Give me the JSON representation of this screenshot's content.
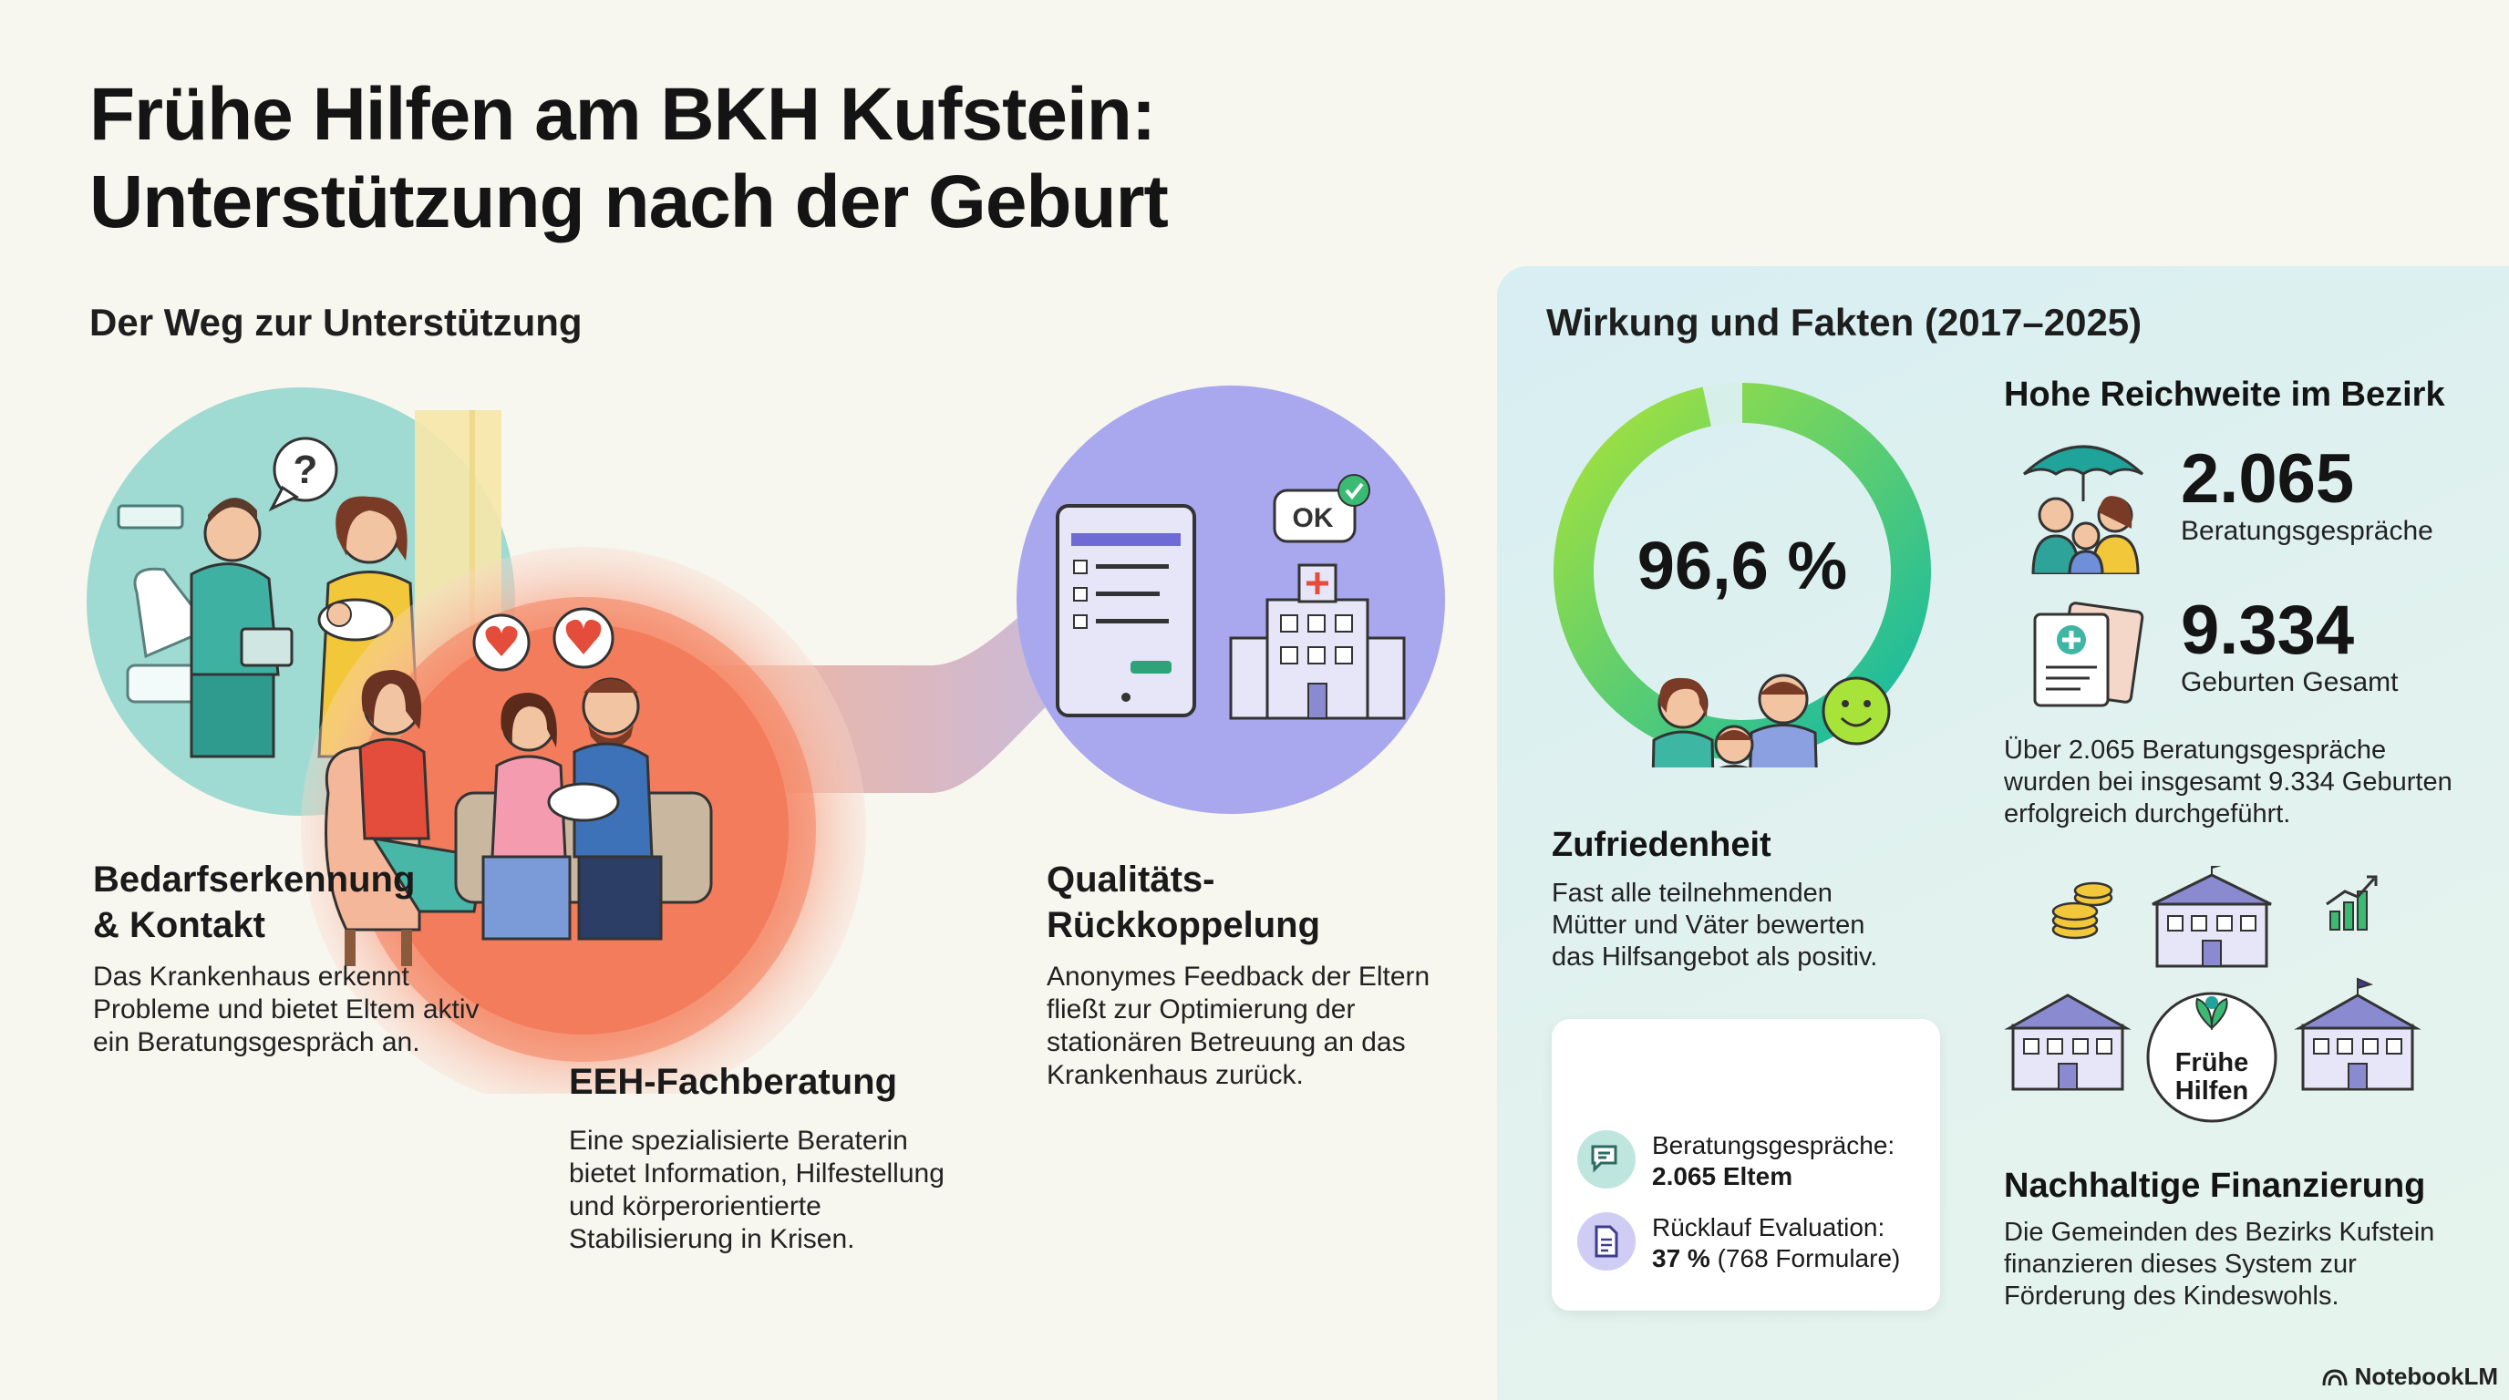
{
  "title": {
    "line1": "Frühe Hilfen am BKH Kufstein:",
    "line2": "Unterstützung nach der Geburt"
  },
  "path_section": {
    "heading": "Der Weg zur Unterstützung",
    "steps": [
      {
        "title_line1": "Bedarfserkennung",
        "title_line2": "& Kontakt",
        "text_lines": [
          "Das Krankenhaus erkennt",
          "Probleme und bietet Eltem aktiv",
          "ein Beratungsgespräch an."
        ]
      },
      {
        "title_line1": "EEH-Fachberatung",
        "title_line2": "",
        "text_lines": [
          "Eine spezialisierte Beraterin",
          "bietet Information, Hilfestellung",
          "und körperorientierte",
          "Stabilisierung in Krisen."
        ]
      },
      {
        "title_line1": "Qualitäts-",
        "title_line2": "Rückkoppelung",
        "text_lines": [
          "Anonymes Feedback der Eltern",
          "fließt zur Optimierung der",
          "stationären Betreuung an das",
          "Krankenhaus zurück."
        ]
      }
    ],
    "illustrations": {
      "question_mark": "?",
      "ok_label": "OK"
    }
  },
  "facts_section": {
    "heading": "Wirkung und Fakten (2017–2025)",
    "satisfaction": {
      "percent_label": "96,6 %",
      "percent_value": 96.6,
      "heading": "Zufriedenheit",
      "text_lines": [
        "Fast alle teilnehmenden",
        "Mütter und Väter bewerten",
        "das Hilfsangebot als positiv."
      ],
      "colors": {
        "ring_start": "#11b8a6",
        "ring_end": "#a8e33a",
        "ring_rest": "#d6efe8"
      }
    },
    "reach": {
      "heading": "Hohe Reichweite im Bezirk",
      "stats": [
        {
          "value": "2.065",
          "label": "Beratungsgespräche"
        },
        {
          "value": "9.334",
          "label": "Geburten Gesamt"
        }
      ],
      "text_lines": [
        "Über 2.065 Beratungsgespräche",
        "wurden bei insgesamt 9.334 Geburten",
        "erfolgreich durchgeführt."
      ]
    },
    "card": {
      "rows": [
        {
          "label": "Beratungsgespräche:",
          "value": "2.065 Eltem",
          "extra": ""
        },
        {
          "label": "Rücklauf Evaluation:",
          "value": "37 %",
          "extra": "(768 Formulare)"
        }
      ]
    },
    "financing": {
      "badge_line1": "Frühe",
      "badge_line2": "Hilfen",
      "heading": "Nachhaltige Finanzierung",
      "text_lines": [
        "Die Gemeinden des Bezirks Kufstein",
        "finanzieren dieses System zur",
        "Förderung des Kindeswohls."
      ]
    }
  },
  "footer": {
    "brand": "NotebookLM"
  }
}
